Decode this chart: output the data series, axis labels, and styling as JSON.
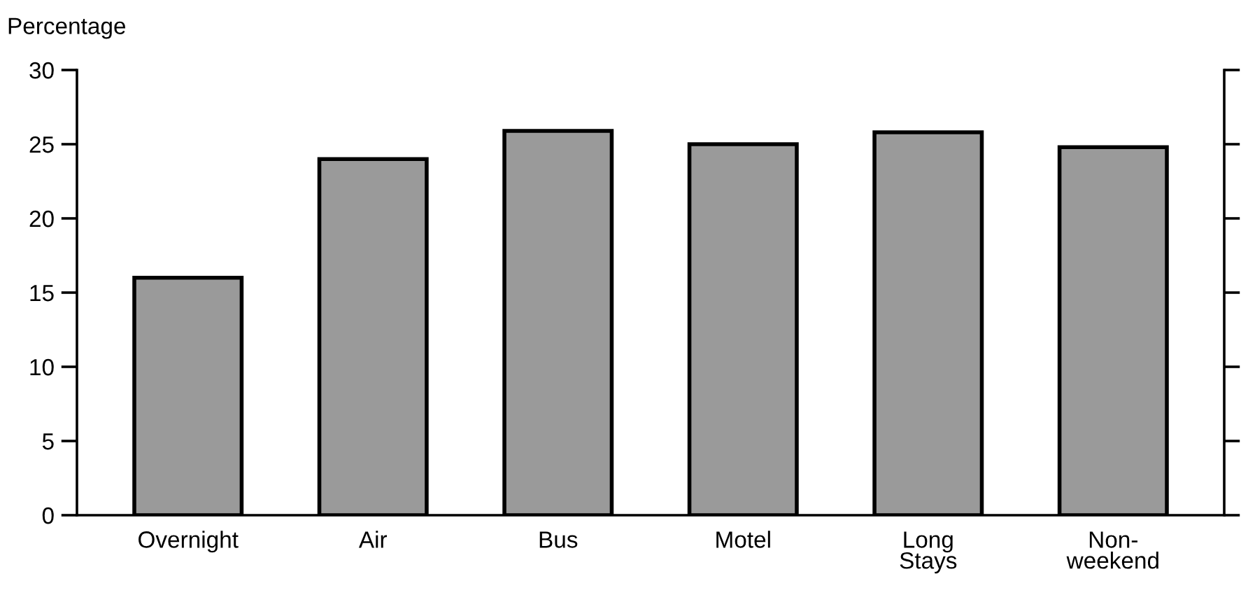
{
  "chart_data": {
    "type": "bar",
    "ylabel": "Percentage",
    "categories": [
      "Overnight",
      "Air",
      "Bus",
      "Motel",
      "Long\nStays",
      "Non-\nweekend"
    ],
    "values": [
      16,
      24,
      25.9,
      25,
      25.8,
      24.8
    ],
    "color": "#9a9a9a",
    "ylim": [
      0,
      30
    ],
    "yticks": [
      0,
      5,
      10,
      15,
      20,
      25,
      30
    ],
    "grid": false
  }
}
